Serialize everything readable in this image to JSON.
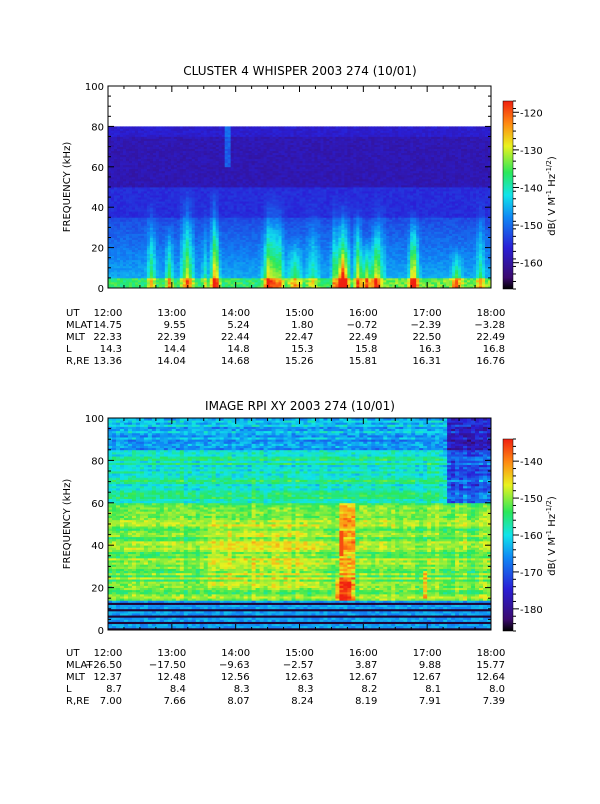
{
  "chart_data": [
    {
      "type": "heatmap",
      "title": "CLUSTER 4 WHISPER 2003 274 (10/01)",
      "ylabel": "FREQUENCY (kHz)",
      "ylim": [
        0,
        100
      ],
      "yticks": [
        "0",
        "20",
        "40",
        "60",
        "80",
        "100"
      ],
      "xlim": [
        "12:00",
        "18:00"
      ],
      "data_frequency_range": [
        0,
        80
      ],
      "colorbar": {
        "label_main": "dB( V M",
        "label_exp1": "-1",
        "label_mid": " Hz",
        "label_exp2": "-1/2",
        "label_end": ")",
        "range": [
          -167,
          -117
        ],
        "ticks": [
          "-120",
          "-130",
          "-140",
          "-150",
          "-160"
        ],
        "tick_values": [
          -120,
          -130,
          -140,
          -150,
          -160
        ]
      },
      "ephemeris": {
        "labels": [
          "UT",
          "MLAT",
          "MLT",
          "L",
          "R,RE"
        ],
        "rows": [
          [
            "12:00",
            "13:00",
            "14:00",
            "15:00",
            "16:00",
            "17:00",
            "18:00"
          ],
          [
            "14.75",
            "9.55",
            "5.24",
            "1.80",
            "−0.72",
            "−2.39",
            "−3.28"
          ],
          [
            "22.33",
            "22.39",
            "22.44",
            "22.47",
            "22.49",
            "22.50",
            "22.49"
          ],
          [
            "14.3",
            "14.4",
            "14.8",
            "15.3",
            "15.8",
            "16.3",
            "16.8"
          ],
          [
            "13.36",
            "14.04",
            "14.68",
            "15.26",
            "15.81",
            "16.31",
            "16.76"
          ]
        ]
      }
    },
    {
      "type": "heatmap",
      "title": "IMAGE RPI XY 2003 274 (10/01)",
      "ylabel": "FREQUENCY (kHz)",
      "ylim": [
        0,
        100
      ],
      "yticks": [
        "0",
        "20",
        "40",
        "60",
        "80",
        "100"
      ],
      "xlim": [
        "12:00",
        "18:00"
      ],
      "data_frequency_range": [
        0,
        100
      ],
      "colorbar": {
        "label_main": "dB( V M",
        "label_exp1": "-1",
        "label_mid": " Hz",
        "label_exp2": "-1/2",
        "label_end": ")",
        "range": [
          -186,
          -134
        ],
        "ticks": [
          "-140",
          "-150",
          "-160",
          "-170",
          "-180"
        ],
        "tick_values": [
          -140,
          -150,
          -160,
          -170,
          -180
        ]
      },
      "ephemeris": {
        "labels": [
          "UT",
          "MLAT",
          "MLT",
          "L",
          "R,RE"
        ],
        "rows": [
          [
            "12:00",
            "13:00",
            "14:00",
            "15:00",
            "16:00",
            "17:00",
            "18:00"
          ],
          [
            "−26.50",
            "−17.50",
            "−9.63",
            "−2.57",
            "3.87",
            "9.88",
            "15.77"
          ],
          [
            "12.37",
            "12.48",
            "12.56",
            "12.63",
            "12.67",
            "12.67",
            "12.64"
          ],
          [
            "8.7",
            "8.4",
            "8.3",
            "8.3",
            "8.2",
            "8.1",
            "8.0"
          ],
          [
            "7.00",
            "7.66",
            "8.07",
            "8.24",
            "8.19",
            "7.91",
            "7.39"
          ]
        ]
      }
    }
  ]
}
